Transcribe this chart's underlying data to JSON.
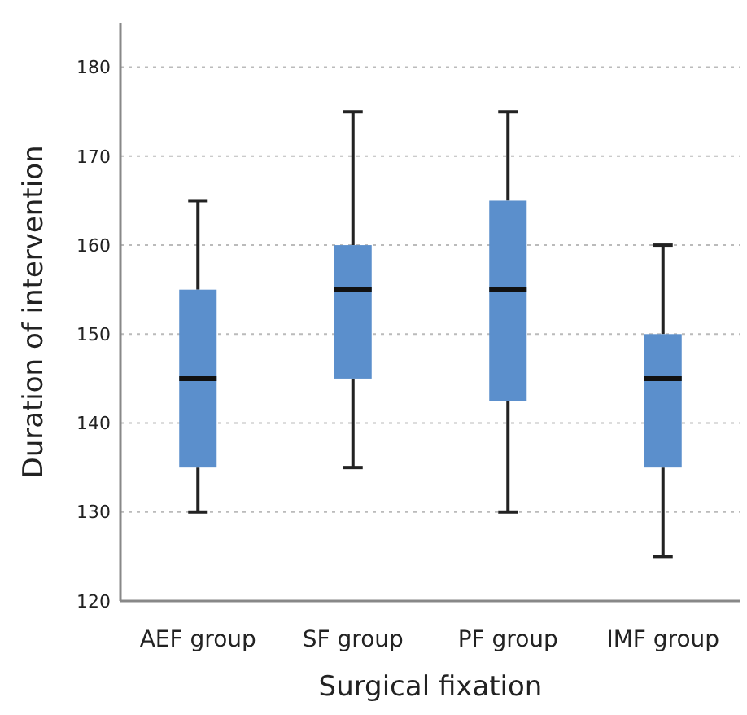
{
  "chart_data": {
    "type": "box",
    "xlabel": "Surgical fixation",
    "ylabel": "Duration of intervention",
    "categories": [
      "AEF group",
      "SF group",
      "PF group",
      "IMF group"
    ],
    "boxes": [
      {
        "low": 130,
        "q1": 135,
        "median": 145,
        "q3": 155,
        "high": 165
      },
      {
        "low": 135,
        "q1": 145,
        "median": 155,
        "q3": 160,
        "high": 175
      },
      {
        "low": 130,
        "q1": 142.5,
        "median": 155,
        "q3": 165,
        "high": 175
      },
      {
        "low": 125,
        "q1": 135,
        "median": 145,
        "q3": 150,
        "high": 160
      }
    ],
    "color": "#5b8fcc",
    "ylim": [
      120,
      185
    ],
    "yticks": [
      120,
      130,
      140,
      150,
      160,
      170,
      180
    ],
    "grid": "y"
  }
}
